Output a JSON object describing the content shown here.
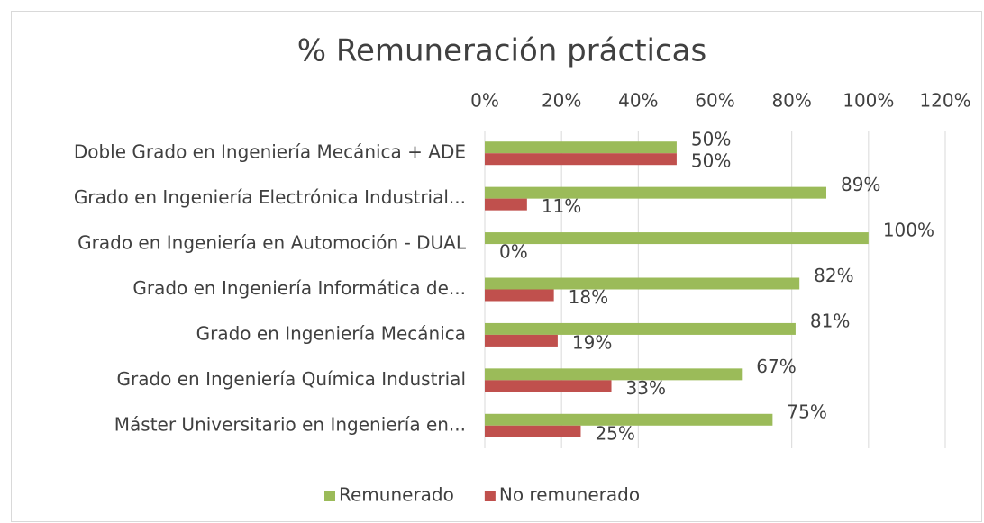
{
  "chart_data": {
    "type": "hbar",
    "title": "% Remuneración prácticas",
    "categories": [
      "Doble Grado en Ingeniería Mecánica + ADE",
      "Grado en Ingeniería Electrónica Industrial...",
      "Grado en Ingeniería en Automoción - DUAL",
      "Grado en Ingeniería Informática de...",
      "Grado en Ingeniería Mecánica",
      "Grado en Ingeniería Química Industrial",
      "Máster Universitario en Ingeniería en..."
    ],
    "series": [
      {
        "name": "Remunerado",
        "color": "#9bbb59",
        "values": [
          50,
          89,
          100,
          82,
          81,
          67,
          75
        ],
        "value_labels": [
          "50%",
          "89%",
          "100%",
          "82%",
          "81%",
          "67%",
          "75%"
        ]
      },
      {
        "name": "No remunerado",
        "color": "#c0504d",
        "values": [
          50,
          11,
          0,
          18,
          19,
          33,
          25
        ],
        "value_labels": [
          "50%",
          "11%",
          "0%",
          "18%",
          "19%",
          "33%",
          "25%"
        ]
      }
    ],
    "xlim": [
      0,
      120
    ],
    "xticks": [
      {
        "value": 0,
        "label": "0%"
      },
      {
        "value": 20,
        "label": "20%"
      },
      {
        "value": 40,
        "label": "40%"
      },
      {
        "value": 60,
        "label": "60%"
      },
      {
        "value": 80,
        "label": "80%"
      },
      {
        "value": 100,
        "label": "100%"
      },
      {
        "value": 120,
        "label": "120%"
      }
    ],
    "grid": true,
    "legend": "bottom"
  }
}
